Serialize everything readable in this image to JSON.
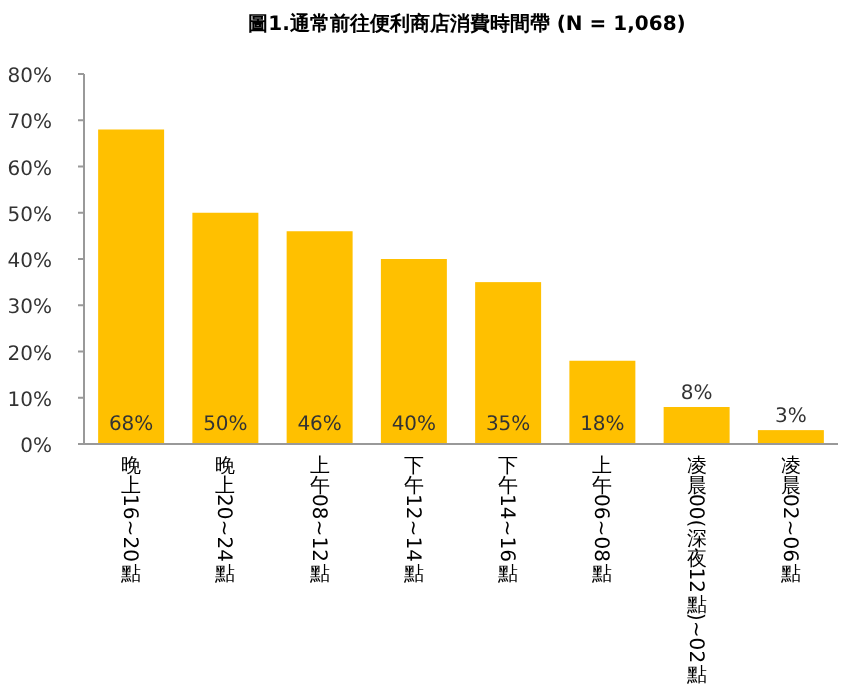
{
  "chart_data": {
    "type": "bar",
    "title": "圖1.通常前往便利商店消費時間帶 (N = 1,068)",
    "categories": [
      "晚上16~20點",
      "晚上20~24點",
      "上午08~12點",
      "下午12~14點",
      "下午14~16點",
      "上午06~08點",
      "凌晨00(深夜12點)~02點",
      "凌晨02~06點"
    ],
    "values": [
      68,
      50,
      46,
      40,
      35,
      18,
      8,
      3
    ],
    "value_labels": [
      "68%",
      "50%",
      "46%",
      "40%",
      "35%",
      "18%",
      "8%",
      "3%"
    ],
    "color": "#ffc000",
    "ylim": [
      0,
      80
    ],
    "yticks": [
      {
        "value": 0,
        "label": "0%"
      },
      {
        "value": 10,
        "label": "10%"
      },
      {
        "value": 20,
        "label": "20%"
      },
      {
        "value": 30,
        "label": "30%"
      },
      {
        "value": 40,
        "label": "40%"
      },
      {
        "value": 50,
        "label": "50%"
      },
      {
        "value": 60,
        "label": "60%"
      },
      {
        "value": 70,
        "label": "70%"
      },
      {
        "value": 80,
        "label": "80%"
      }
    ],
    "grid": false
  }
}
